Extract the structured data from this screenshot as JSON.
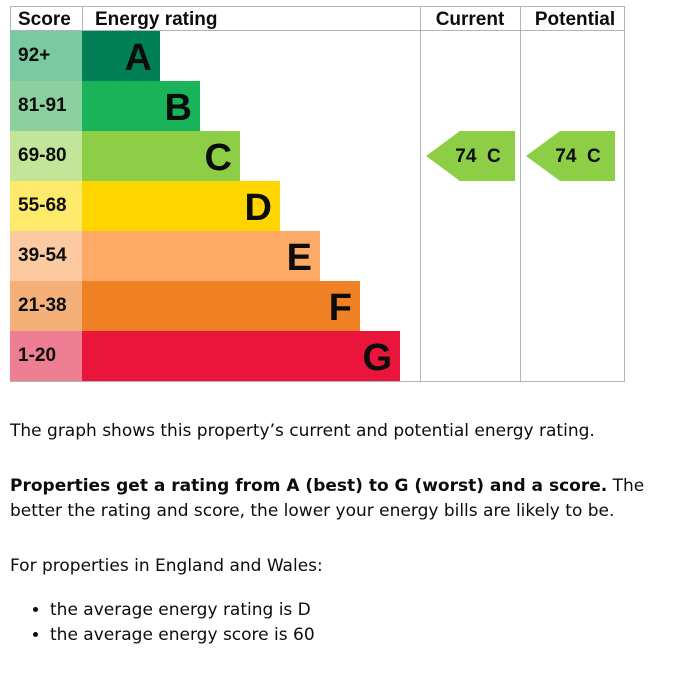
{
  "chart_data": {
    "type": "table",
    "headers": {
      "score": "Score",
      "rating": "Energy rating",
      "current": "Current",
      "potential": "Potential"
    },
    "bands": [
      {
        "range": "92+",
        "letter": "A",
        "color": "#008054",
        "score_bg": "#7bc9a0"
      },
      {
        "range": "81-91",
        "letter": "B",
        "color": "#19b459",
        "score_bg": "#8dd0a0"
      },
      {
        "range": "69-80",
        "letter": "C",
        "color": "#8dce46",
        "score_bg": "#c3e59a"
      },
      {
        "range": "55-68",
        "letter": "D",
        "color": "#ffd500",
        "score_bg": "#fde96a"
      },
      {
        "range": "39-54",
        "letter": "E",
        "color": "#fcaa65",
        "score_bg": "#fbcaa0"
      },
      {
        "range": "21-38",
        "letter": "F",
        "color": "#ef8023",
        "score_bg": "#f5b07a"
      },
      {
        "range": "1-20",
        "letter": "G",
        "color": "#e9153b",
        "score_bg": "#ee7e92"
      }
    ],
    "current": {
      "score": 74,
      "letter": "C",
      "label": "74  C",
      "color": "#8dce46"
    },
    "potential": {
      "score": 74,
      "letter": "C",
      "label": "74  C",
      "color": "#8dce46"
    }
  },
  "text": {
    "intro": "The graph shows this property’s current and potential energy rating.",
    "rating_bold": "Properties get a rating from A (best) to G (worst) and a score.",
    "rating_rest": " The better the rating and score, the lower your energy bills are likely to be.",
    "region": "For properties in England and Wales:",
    "bullets": [
      "the average energy rating is D",
      "the average energy score is 60"
    ]
  }
}
